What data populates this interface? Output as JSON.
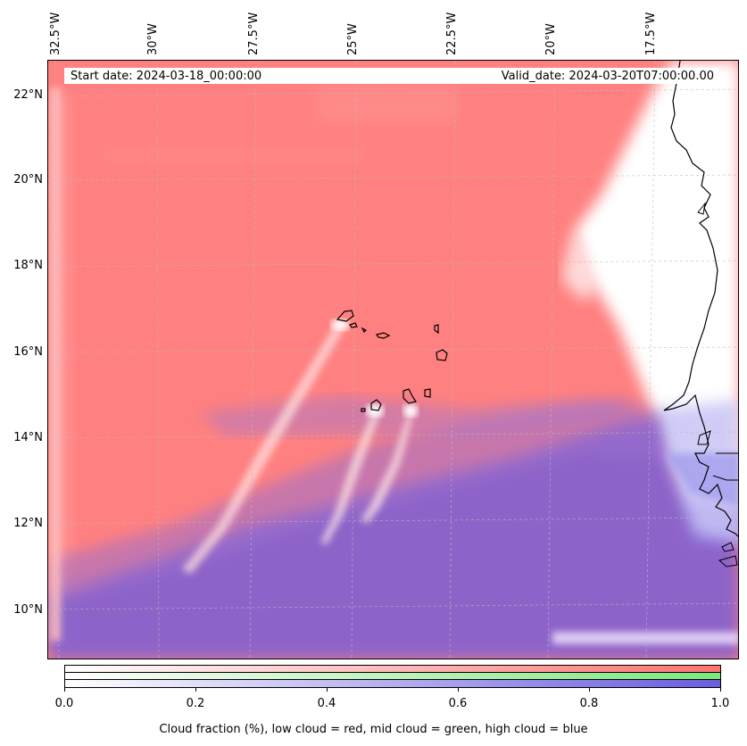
{
  "map": {
    "start_date": "Start date: 2024-03-18_00:00:00",
    "valid_date": "Valid_date: 2024-03-20T07:00:00.00",
    "longitude_labels": [
      "32.5°W",
      "30°W",
      "27.5°W",
      "25°W",
      "22.5°W",
      "20°W",
      "17.5°W"
    ],
    "latitude_labels": [
      "22°N",
      "20°N",
      "18°N",
      "16°N",
      "14°N",
      "12°N",
      "10°N"
    ],
    "layers": {
      "low_cloud_color": "#ff7f7f",
      "high_cloud_color": "#7f66dd",
      "mid_cloud_color": "#86ee86",
      "clear_color": "#ffffff",
      "coastline_color": "#000000"
    }
  },
  "colorbar": {
    "tick_labels": [
      "0.0",
      "0.2",
      "0.4",
      "0.6",
      "0.8",
      "1.0"
    ],
    "label": "Cloud fraction (%), low cloud = red, mid cloud = green, high cloud = blue",
    "red_start": "#ffffff",
    "red_end": "#ff7373",
    "green_start": "#ffffff",
    "green_end": "#7be87b",
    "blue_start": "#ffffff",
    "blue_end": "#6a5cdf"
  }
}
